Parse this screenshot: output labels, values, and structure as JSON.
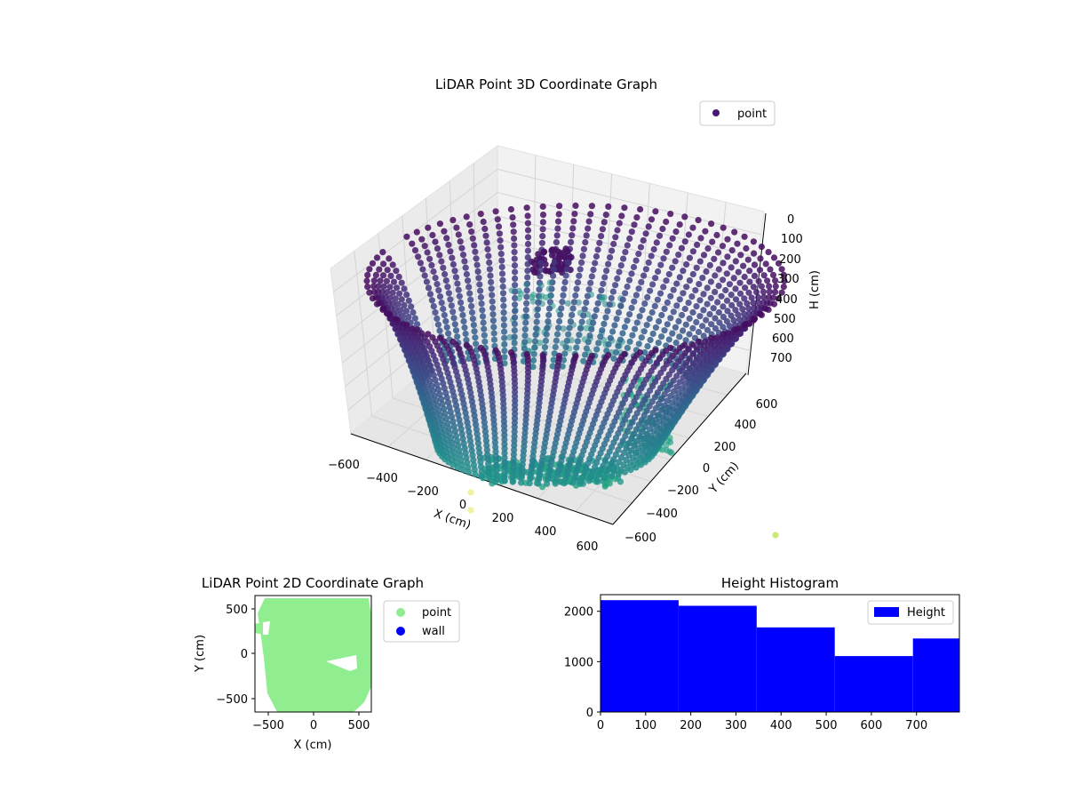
{
  "colors": {
    "background": "#ffffff",
    "pane_fill": "#f2f2f2",
    "grid": "#dcdcdc",
    "legend_point_3d": "#46186e",
    "scatter2d_point": "#90ee90",
    "scatter2d_wall": "#0000ff",
    "histogram_bar": "#0000ff"
  },
  "chart_data": [
    {
      "id": "lidar-3d",
      "type": "scatter",
      "title": "LiDAR Point 3D Coordinate Graph",
      "xlabel": "X (cm)",
      "ylabel": "Y (cm)",
      "zlabel": "H (cm)",
      "x_ticks": [
        "−600",
        "−400",
        "−200",
        "0",
        "200",
        "400",
        "600"
      ],
      "y_ticks": [
        "−600",
        "−400",
        "−200",
        "0",
        "200",
        "400",
        "600"
      ],
      "z_ticks": [
        "0",
        "100",
        "200",
        "300",
        "400",
        "500",
        "600",
        "700"
      ],
      "xlim": [
        -650,
        650
      ],
      "ylim": [
        -650,
        650
      ],
      "zlim": [
        0,
        800
      ],
      "z_inverted": true,
      "colormap": "viridis",
      "grid": true,
      "legend": {
        "placement": "upper-right",
        "entries": [
          "point"
        ]
      },
      "series": [
        {
          "name": "point"
        }
      ]
    },
    {
      "id": "lidar-2d",
      "type": "scatter",
      "title": "LiDAR Point 2D Coordinate Graph",
      "xlabel": "X (cm)",
      "ylabel": "Y (cm)",
      "x_ticks": [
        "−500",
        "0",
        "500"
      ],
      "y_ticks": [
        "500",
        "0",
        "−500"
      ],
      "xlim": [
        -650,
        650
      ],
      "ylim": [
        -650,
        650
      ],
      "legend": {
        "placement": "outside-right",
        "entries": [
          "point",
          "wall"
        ]
      },
      "series": [
        {
          "name": "point"
        },
        {
          "name": "wall"
        }
      ]
    },
    {
      "id": "height-hist",
      "type": "bar",
      "title": "Height Histogram",
      "x_ticks": [
        "0",
        "100",
        "200",
        "300",
        "400",
        "500",
        "600",
        "700"
      ],
      "y_ticks": [
        "0",
        "1000",
        "2000"
      ],
      "xlim": [
        0,
        795
      ],
      "ylim": [
        0,
        2330
      ],
      "bin_edges": [
        0,
        173,
        346,
        519,
        692,
        865
      ],
      "values": [
        2220,
        2110,
        1680,
        1110,
        1460
      ],
      "legend": {
        "placement": "upper-right",
        "entries": [
          "Height"
        ]
      },
      "series": [
        {
          "name": "Height"
        }
      ]
    }
  ]
}
